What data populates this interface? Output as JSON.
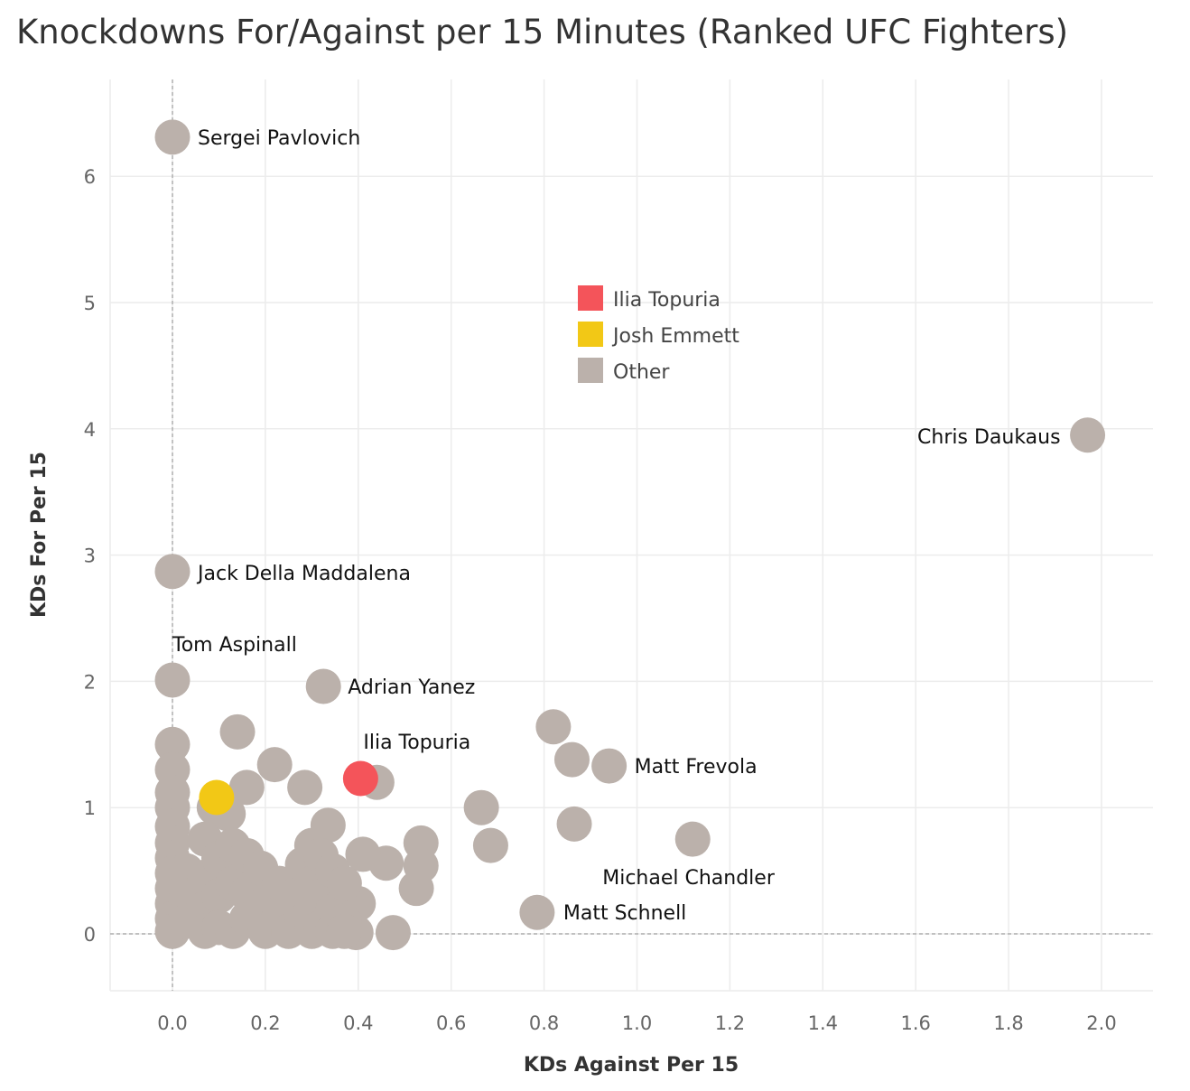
{
  "chart_data": {
    "type": "scatter",
    "title": "Knockdowns For/Against per 15 Minutes (Ranked UFC Fighters)",
    "xlabel": "KDs Against Per 15",
    "ylabel": "KDs For Per 15",
    "xlim": [
      -0.14,
      2.12
    ],
    "ylim": [
      -0.45,
      6.7
    ],
    "x_ticks": [
      0.0,
      0.2,
      0.4,
      0.6,
      0.8,
      1.0,
      1.2,
      1.4,
      1.6,
      1.8,
      2.0
    ],
    "x_tick_labels": [
      "0.0",
      "0.2",
      "0.4",
      "0.6",
      "0.8",
      "1.0",
      "1.2",
      "1.4",
      "1.6",
      "1.8",
      "2.0"
    ],
    "y_ticks": [
      0,
      1,
      2,
      3,
      4,
      5,
      6
    ],
    "y_tick_labels": [
      "0",
      "1",
      "2",
      "3",
      "4",
      "5",
      "6"
    ],
    "grid": true,
    "legend_position": "upper-middle",
    "colors": {
      "Ilia Topuria": "#f4545a",
      "Josh Emmett": "#f2c816",
      "Other": "#bbb1ab"
    },
    "legend": [
      "Ilia Topuria",
      "Josh Emmett",
      "Other"
    ],
    "series": [
      {
        "name": "Other",
        "points": [
          {
            "x": 0.0,
            "y": 6.31,
            "label": "Sergei Pavlovich"
          },
          {
            "x": 1.97,
            "y": 3.95,
            "label": "Chris Daukaus"
          },
          {
            "x": 0.0,
            "y": 2.87,
            "label": "Jack Della Maddalena"
          },
          {
            "x": 0.0,
            "y": 2.01,
            "label": "Tom Aspinall"
          },
          {
            "x": 0.325,
            "y": 1.96,
            "label": "Adrian Yanez"
          },
          {
            "x": 0.94,
            "y": 1.33,
            "label": "Matt Frevola"
          },
          {
            "x": 1.12,
            "y": 0.75,
            "label": "Michael Chandler"
          },
          {
            "x": 0.785,
            "y": 0.17,
            "label": "Matt Schnell"
          },
          {
            "x": 0.14,
            "y": 1.6
          },
          {
            "x": 0.22,
            "y": 1.34
          },
          {
            "x": 0.285,
            "y": 1.16
          },
          {
            "x": 0.16,
            "y": 1.16
          },
          {
            "x": 0.44,
            "y": 1.2
          },
          {
            "x": 0.82,
            "y": 1.64
          },
          {
            "x": 0.86,
            "y": 1.38
          },
          {
            "x": 0.665,
            "y": 1.0
          },
          {
            "x": 0.865,
            "y": 0.87
          },
          {
            "x": 0.685,
            "y": 0.7
          },
          {
            "x": 0.535,
            "y": 0.72
          },
          {
            "x": 0.535,
            "y": 0.54
          },
          {
            "x": 0.525,
            "y": 0.36
          },
          {
            "x": 0.46,
            "y": 0.56
          },
          {
            "x": 0.41,
            "y": 0.63
          },
          {
            "x": 0.335,
            "y": 0.86
          },
          {
            "x": 0.475,
            "y": 0.01
          },
          {
            "x": 0.4,
            "y": 0.24
          },
          {
            "x": 0.395,
            "y": 0.01
          },
          {
            "x": 0.0,
            "y": 1.5
          },
          {
            "x": 0.0,
            "y": 1.3
          },
          {
            "x": 0.0,
            "y": 1.12
          },
          {
            "x": 0.0,
            "y": 1.0
          },
          {
            "x": 0.0,
            "y": 0.85
          },
          {
            "x": 0.0,
            "y": 0.72
          },
          {
            "x": 0.0,
            "y": 0.6
          },
          {
            "x": 0.0,
            "y": 0.48
          },
          {
            "x": 0.0,
            "y": 0.36
          },
          {
            "x": 0.0,
            "y": 0.24
          },
          {
            "x": 0.0,
            "y": 0.12
          },
          {
            "x": 0.0,
            "y": 0.02
          },
          {
            "x": 0.03,
            "y": 0.5
          },
          {
            "x": 0.03,
            "y": 0.3
          },
          {
            "x": 0.03,
            "y": 0.1
          },
          {
            "x": 0.07,
            "y": 0.75
          },
          {
            "x": 0.07,
            "y": 0.45
          },
          {
            "x": 0.07,
            "y": 0.2
          },
          {
            "x": 0.07,
            "y": 0.02
          },
          {
            "x": 0.09,
            "y": 1.0
          },
          {
            "x": 0.12,
            "y": 0.95
          },
          {
            "x": 0.1,
            "y": 0.6
          },
          {
            "x": 0.1,
            "y": 0.3
          },
          {
            "x": 0.1,
            "y": 0.05
          },
          {
            "x": 0.13,
            "y": 0.7
          },
          {
            "x": 0.13,
            "y": 0.4
          },
          {
            "x": 0.13,
            "y": 0.02
          },
          {
            "x": 0.16,
            "y": 0.62
          },
          {
            "x": 0.16,
            "y": 0.32
          },
          {
            "x": 0.16,
            "y": 0.12
          },
          {
            "x": 0.19,
            "y": 0.52
          },
          {
            "x": 0.19,
            "y": 0.22
          },
          {
            "x": 0.2,
            "y": 0.02
          },
          {
            "x": 0.23,
            "y": 0.4
          },
          {
            "x": 0.23,
            "y": 0.15
          },
          {
            "x": 0.26,
            "y": 0.3
          },
          {
            "x": 0.25,
            "y": 0.02
          },
          {
            "x": 0.28,
            "y": 0.55
          },
          {
            "x": 0.28,
            "y": 0.1
          },
          {
            "x": 0.3,
            "y": 0.7
          },
          {
            "x": 0.3,
            "y": 0.4
          },
          {
            "x": 0.3,
            "y": 0.2
          },
          {
            "x": 0.3,
            "y": 0.02
          },
          {
            "x": 0.32,
            "y": 0.62
          },
          {
            "x": 0.32,
            "y": 0.3
          },
          {
            "x": 0.32,
            "y": 0.05
          },
          {
            "x": 0.345,
            "y": 0.5
          },
          {
            "x": 0.345,
            "y": 0.18
          },
          {
            "x": 0.345,
            "y": 0.02
          },
          {
            "x": 0.37,
            "y": 0.4
          },
          {
            "x": 0.37,
            "y": 0.1
          },
          {
            "x": 0.37,
            "y": 0.02
          }
        ]
      },
      {
        "name": "Josh Emmett",
        "points": [
          {
            "x": 0.095,
            "y": 1.08
          }
        ]
      },
      {
        "name": "Ilia Topuria",
        "points": [
          {
            "x": 0.405,
            "y": 1.23,
            "label": "Ilia Topuria"
          }
        ]
      }
    ]
  }
}
